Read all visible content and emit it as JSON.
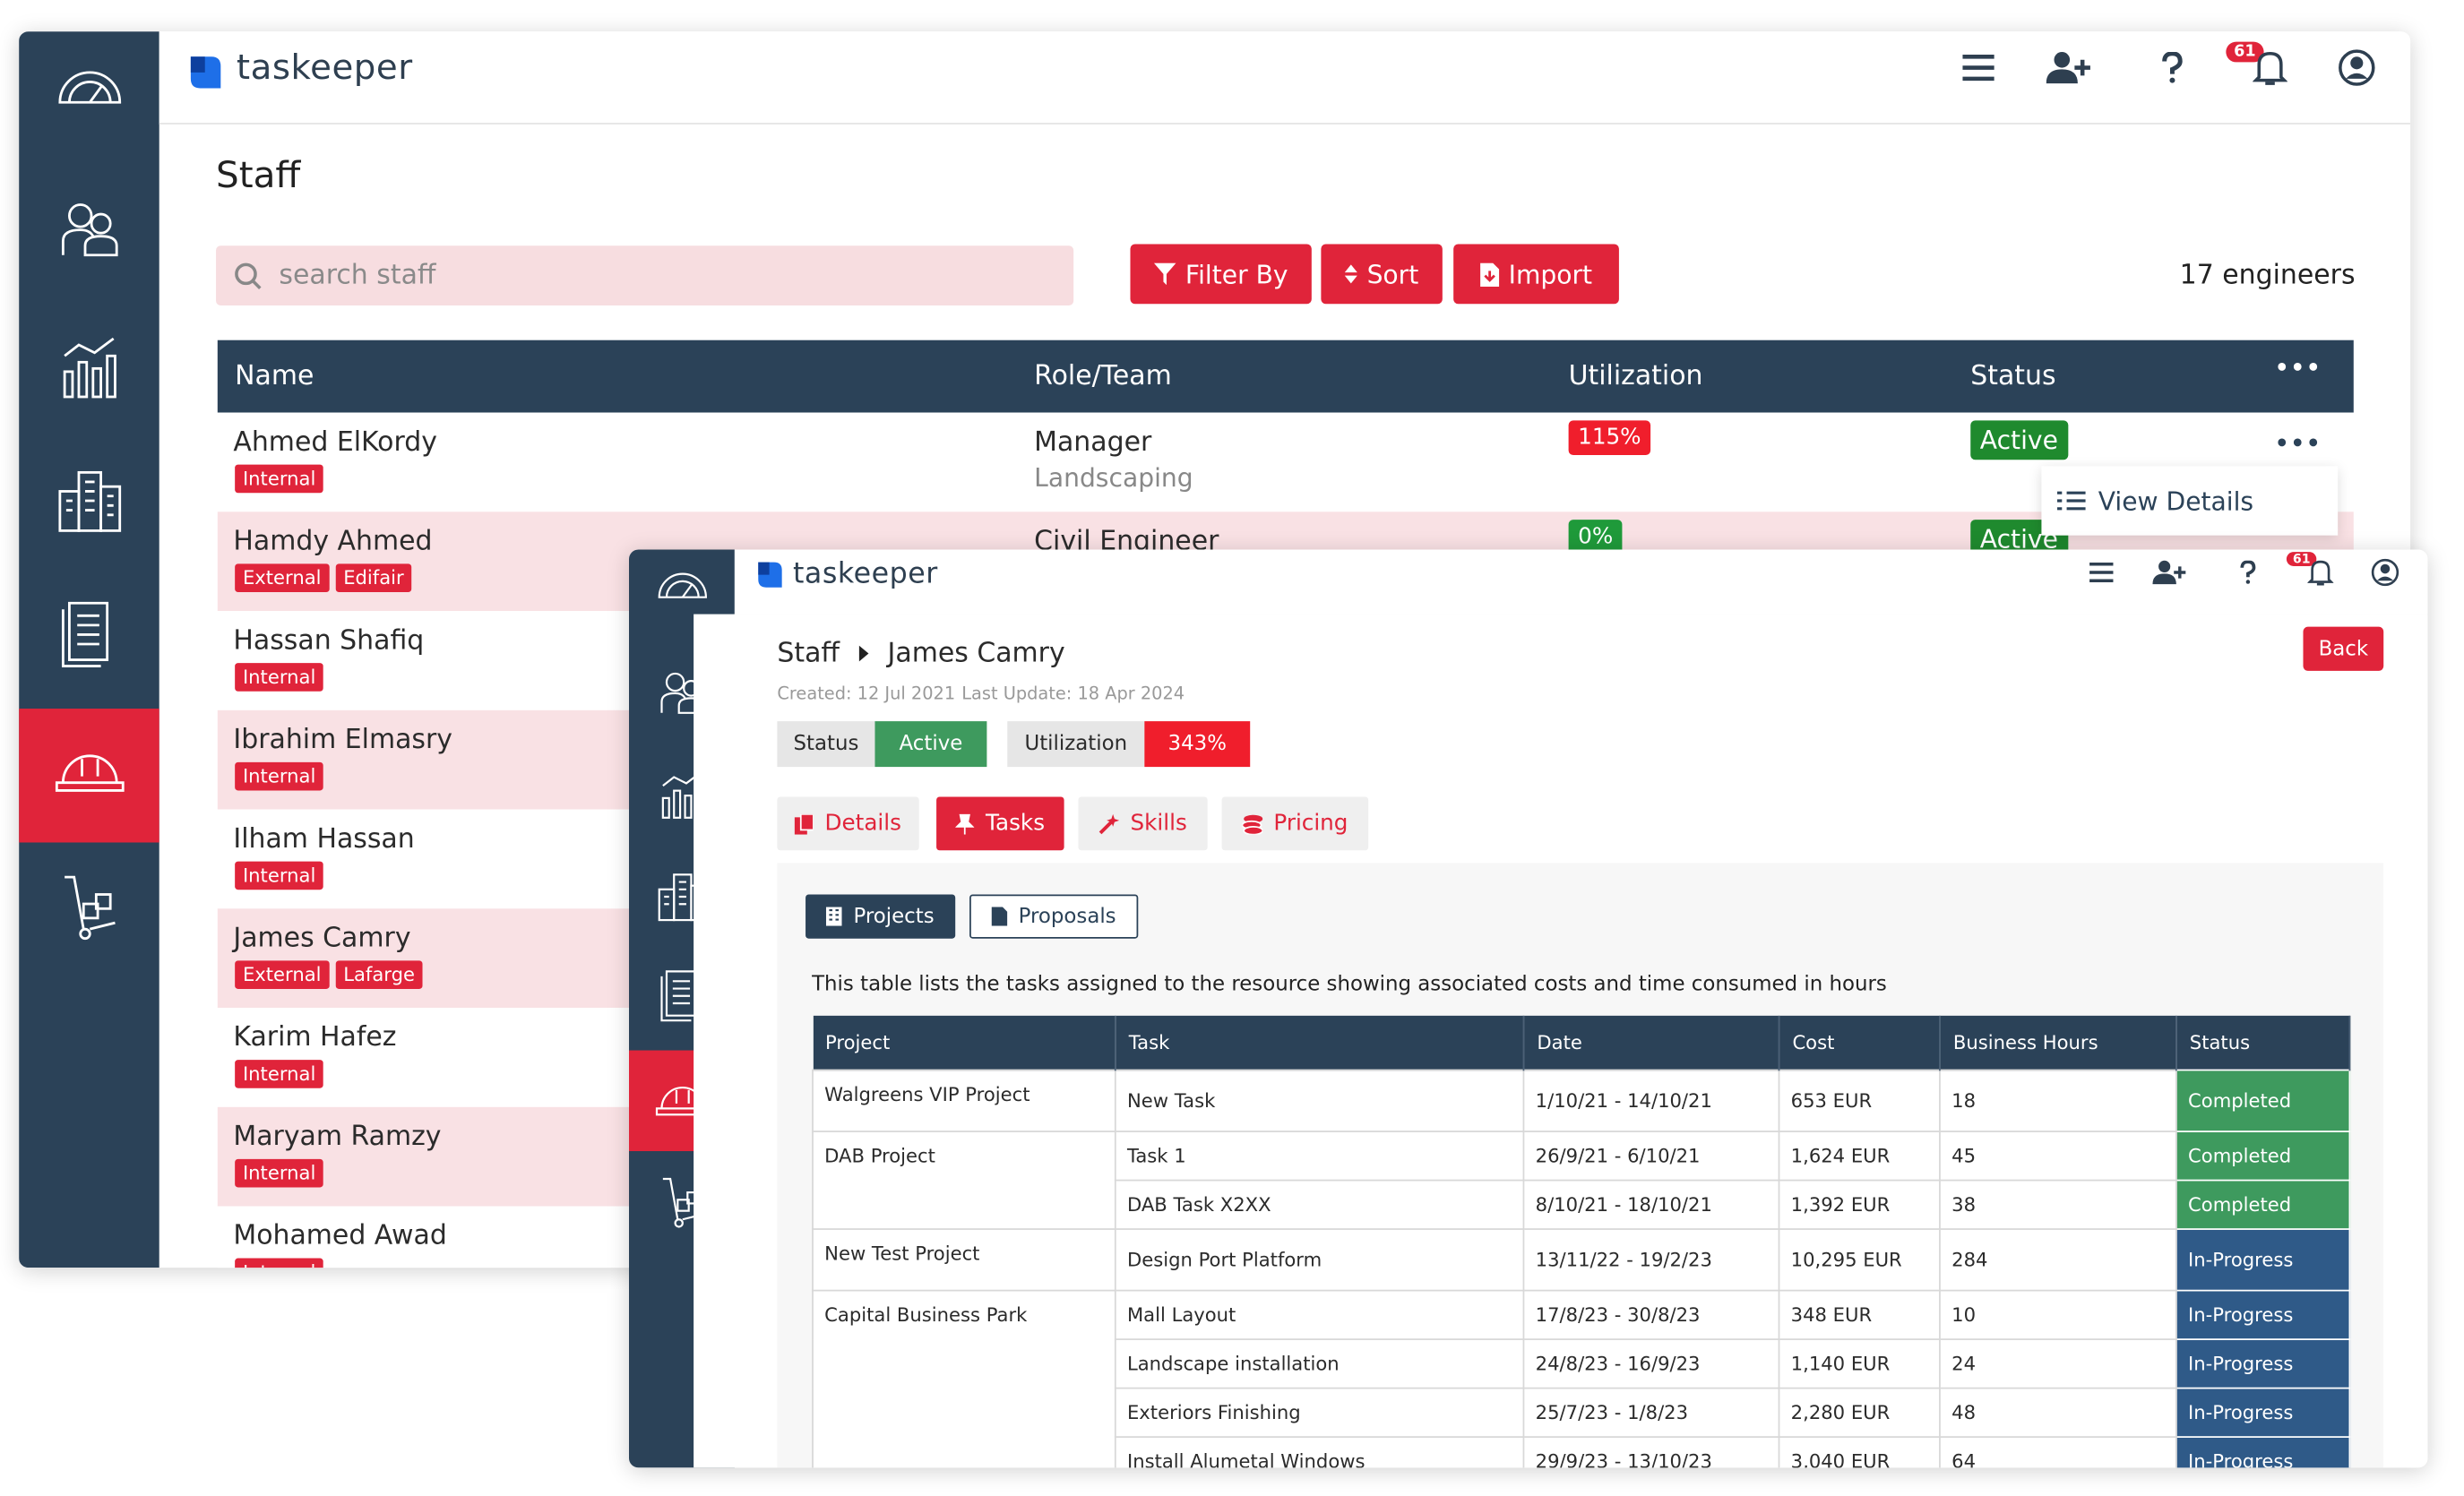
{
  "staff_list": {
    "logo": "taskeeper",
    "notification_count": "61",
    "page_title": "Staff",
    "search_placeholder": "search staff",
    "buttons": [
      "Filter By",
      "Sort",
      "Import"
    ],
    "count": "17 engineers",
    "headers": [
      "Name",
      "Role/Team",
      "Utilization",
      "Status"
    ],
    "rows": [
      {
        "name": "Ahmed ElKordy",
        "tags": [
          "Internal"
        ],
        "role": "Manager",
        "team": "Landscaping",
        "utilization": "115%",
        "status": "Active"
      },
      {
        "name": "Hamdy Ahmed",
        "tags": [
          "External",
          "Edifair"
        ],
        "role": "Civil Engineer",
        "utilization": "0%",
        "status": "Active"
      },
      {
        "name": "Hassan Shafiq",
        "tags": [
          "Internal"
        ]
      },
      {
        "name": "Ibrahim Elmasry",
        "tags": [
          "Internal"
        ]
      },
      {
        "name": "Ilham Hassan",
        "tags": [
          "Internal"
        ]
      },
      {
        "name": "James Camry",
        "tags": [
          "External",
          "Lafarge"
        ]
      },
      {
        "name": "Karim Hafez",
        "tags": [
          "Internal"
        ]
      },
      {
        "name": "Maryam Ramzy",
        "tags": [
          "Internal"
        ]
      },
      {
        "name": "Mohamed Awad",
        "tags": [
          "Internal"
        ]
      }
    ],
    "row_menu": "View Details"
  },
  "staff_detail": {
    "logo": "taskeeper",
    "notification_count": "61",
    "breadcrumb": [
      "Staff",
      "James Camry"
    ],
    "back_button": "Back",
    "created": "Created: 12 Jul 2021",
    "last_update": "Last Update: 18 Apr 2024",
    "status_label": "Status",
    "status": "Active",
    "utilization_label": "Utilization",
    "utilization": "343%",
    "tabs": [
      "Details",
      "Tasks",
      "Skills",
      "Pricing"
    ],
    "subtabs": [
      "Projects",
      "Proposals"
    ],
    "description": "This table lists the tasks assigned to the resource showing associated costs and time consumed in hours",
    "table": {
      "headers": [
        "Project",
        "Task",
        "Date",
        "Cost",
        "Business Hours",
        "Status"
      ],
      "projects": [
        {
          "name": "Walgreens VIP Project",
          "tasks": [
            {
              "task": "New Task",
              "date": "1/10/21 - 14/10/21",
              "cost": "653 EUR",
              "hours": "18",
              "status": "Completed"
            }
          ]
        },
        {
          "name": "DAB Project",
          "tasks": [
            {
              "task": "Task 1",
              "date": "26/9/21 - 6/10/21",
              "cost": "1,624 EUR",
              "hours": "45",
              "status": "Completed"
            },
            {
              "task": "DAB Task X2XX",
              "date": "8/10/21 - 18/10/21",
              "cost": "1,392 EUR",
              "hours": "38",
              "status": "Completed"
            }
          ]
        },
        {
          "name": "New Test Project",
          "tasks": [
            {
              "task": "Design Port Platform",
              "date": "13/11/22 - 19/2/23",
              "cost": "10,295 EUR",
              "hours": "284",
              "status": "In-Progress"
            }
          ]
        },
        {
          "name": "Capital Business Park",
          "tasks": [
            {
              "task": "Mall Layout",
              "date": "17/8/23 - 30/8/23",
              "cost": "348 EUR",
              "hours": "10",
              "status": "In-Progress"
            },
            {
              "task": "Landscape installation",
              "date": "24/8/23 - 16/9/23",
              "cost": "1,140 EUR",
              "hours": "24",
              "status": "In-Progress"
            },
            {
              "task": "Exteriors Finishing",
              "date": "25/7/23 - 1/8/23",
              "cost": "2,280 EUR",
              "hours": "48",
              "status": "In-Progress"
            },
            {
              "task": "Install Alumetal Windows",
              "date": "29/9/23 - 13/10/23",
              "cost": "3,040 EUR",
              "hours": "64",
              "status": "In-Progress"
            }
          ]
        }
      ]
    }
  }
}
